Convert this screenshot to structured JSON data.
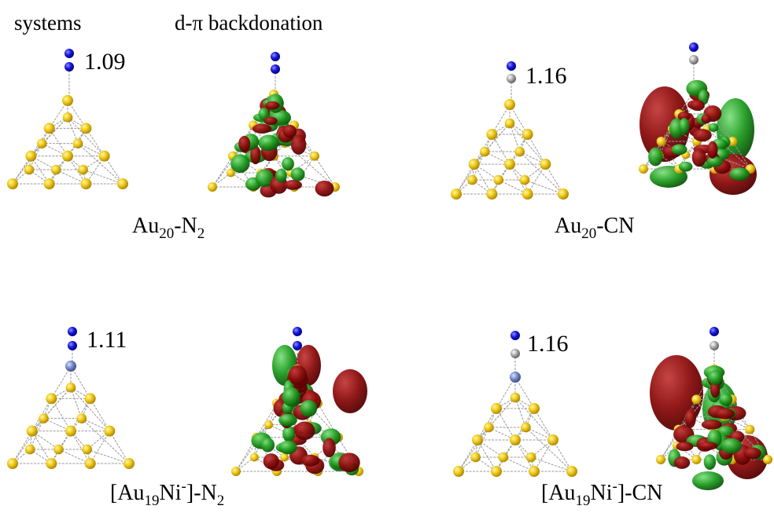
{
  "header": {
    "systems": "systems",
    "backdonation": "d-π backdonation"
  },
  "panels": [
    {
      "bond_length": 1.09,
      "label_parts": [
        "Au",
        "20",
        "-N",
        "2"
      ]
    },
    {
      "bond_length": 1.16,
      "label_parts": [
        "Au",
        "20",
        "-CN"
      ]
    },
    {
      "bond_length": 1.11,
      "label_parts": [
        "[Au",
        "19",
        "Ni",
        "-",
        "]-N",
        "2"
      ]
    },
    {
      "bond_length": 1.16,
      "label_parts": [
        "[Au",
        "19",
        "Ni",
        "-",
        "]-CN"
      ]
    }
  ]
}
